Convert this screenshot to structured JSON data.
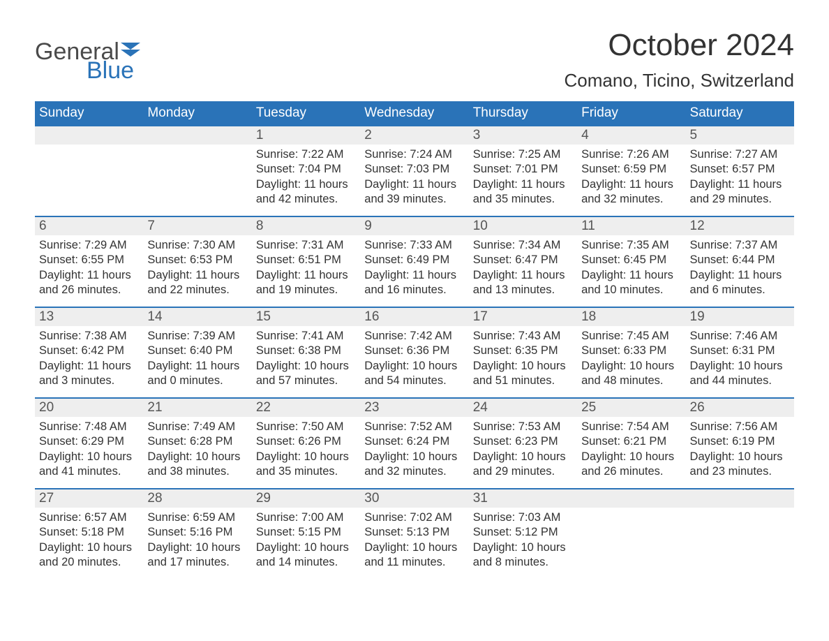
{
  "logo": {
    "word1": "General",
    "word2": "Blue",
    "word1_color": "#4a4a4a",
    "word2_color": "#2a73b8",
    "flag_color": "#2a73b8"
  },
  "title": "October 2024",
  "location": "Comano, Ticino, Switzerland",
  "colors": {
    "header_bg": "#2a73b8",
    "header_fg": "#ffffff",
    "daynum_bg": "#eeeeee",
    "body_fg": "#333333",
    "rule": "#2a73b8"
  },
  "typography": {
    "title_pt": 44,
    "location_pt": 26,
    "th_pt": 19,
    "daynum_pt": 19,
    "body_pt": 16.5
  },
  "dayHeaders": [
    "Sunday",
    "Monday",
    "Tuesday",
    "Wednesday",
    "Thursday",
    "Friday",
    "Saturday"
  ],
  "labels": {
    "sunrise": "Sunrise: ",
    "sunset": "Sunset: ",
    "daylight": "Daylight: "
  },
  "weeks": [
    [
      null,
      null,
      {
        "n": "1",
        "sr": "7:22 AM",
        "ss": "7:04 PM",
        "dl": "11 hours and 42 minutes."
      },
      {
        "n": "2",
        "sr": "7:24 AM",
        "ss": "7:03 PM",
        "dl": "11 hours and 39 minutes."
      },
      {
        "n": "3",
        "sr": "7:25 AM",
        "ss": "7:01 PM",
        "dl": "11 hours and 35 minutes."
      },
      {
        "n": "4",
        "sr": "7:26 AM",
        "ss": "6:59 PM",
        "dl": "11 hours and 32 minutes."
      },
      {
        "n": "5",
        "sr": "7:27 AM",
        "ss": "6:57 PM",
        "dl": "11 hours and 29 minutes."
      }
    ],
    [
      {
        "n": "6",
        "sr": "7:29 AM",
        "ss": "6:55 PM",
        "dl": "11 hours and 26 minutes."
      },
      {
        "n": "7",
        "sr": "7:30 AM",
        "ss": "6:53 PM",
        "dl": "11 hours and 22 minutes."
      },
      {
        "n": "8",
        "sr": "7:31 AM",
        "ss": "6:51 PM",
        "dl": "11 hours and 19 minutes."
      },
      {
        "n": "9",
        "sr": "7:33 AM",
        "ss": "6:49 PM",
        "dl": "11 hours and 16 minutes."
      },
      {
        "n": "10",
        "sr": "7:34 AM",
        "ss": "6:47 PM",
        "dl": "11 hours and 13 minutes."
      },
      {
        "n": "11",
        "sr": "7:35 AM",
        "ss": "6:45 PM",
        "dl": "11 hours and 10 minutes."
      },
      {
        "n": "12",
        "sr": "7:37 AM",
        "ss": "6:44 PM",
        "dl": "11 hours and 6 minutes."
      }
    ],
    [
      {
        "n": "13",
        "sr": "7:38 AM",
        "ss": "6:42 PM",
        "dl": "11 hours and 3 minutes."
      },
      {
        "n": "14",
        "sr": "7:39 AM",
        "ss": "6:40 PM",
        "dl": "11 hours and 0 minutes."
      },
      {
        "n": "15",
        "sr": "7:41 AM",
        "ss": "6:38 PM",
        "dl": "10 hours and 57 minutes."
      },
      {
        "n": "16",
        "sr": "7:42 AM",
        "ss": "6:36 PM",
        "dl": "10 hours and 54 minutes."
      },
      {
        "n": "17",
        "sr": "7:43 AM",
        "ss": "6:35 PM",
        "dl": "10 hours and 51 minutes."
      },
      {
        "n": "18",
        "sr": "7:45 AM",
        "ss": "6:33 PM",
        "dl": "10 hours and 48 minutes."
      },
      {
        "n": "19",
        "sr": "7:46 AM",
        "ss": "6:31 PM",
        "dl": "10 hours and 44 minutes."
      }
    ],
    [
      {
        "n": "20",
        "sr": "7:48 AM",
        "ss": "6:29 PM",
        "dl": "10 hours and 41 minutes."
      },
      {
        "n": "21",
        "sr": "7:49 AM",
        "ss": "6:28 PM",
        "dl": "10 hours and 38 minutes."
      },
      {
        "n": "22",
        "sr": "7:50 AM",
        "ss": "6:26 PM",
        "dl": "10 hours and 35 minutes."
      },
      {
        "n": "23",
        "sr": "7:52 AM",
        "ss": "6:24 PM",
        "dl": "10 hours and 32 minutes."
      },
      {
        "n": "24",
        "sr": "7:53 AM",
        "ss": "6:23 PM",
        "dl": "10 hours and 29 minutes."
      },
      {
        "n": "25",
        "sr": "7:54 AM",
        "ss": "6:21 PM",
        "dl": "10 hours and 26 minutes."
      },
      {
        "n": "26",
        "sr": "7:56 AM",
        "ss": "6:19 PM",
        "dl": "10 hours and 23 minutes."
      }
    ],
    [
      {
        "n": "27",
        "sr": "6:57 AM",
        "ss": "5:18 PM",
        "dl": "10 hours and 20 minutes."
      },
      {
        "n": "28",
        "sr": "6:59 AM",
        "ss": "5:16 PM",
        "dl": "10 hours and 17 minutes."
      },
      {
        "n": "29",
        "sr": "7:00 AM",
        "ss": "5:15 PM",
        "dl": "10 hours and 14 minutes."
      },
      {
        "n": "30",
        "sr": "7:02 AM",
        "ss": "5:13 PM",
        "dl": "10 hours and 11 minutes."
      },
      {
        "n": "31",
        "sr": "7:03 AM",
        "ss": "5:12 PM",
        "dl": "10 hours and 8 minutes."
      },
      null,
      null
    ]
  ]
}
